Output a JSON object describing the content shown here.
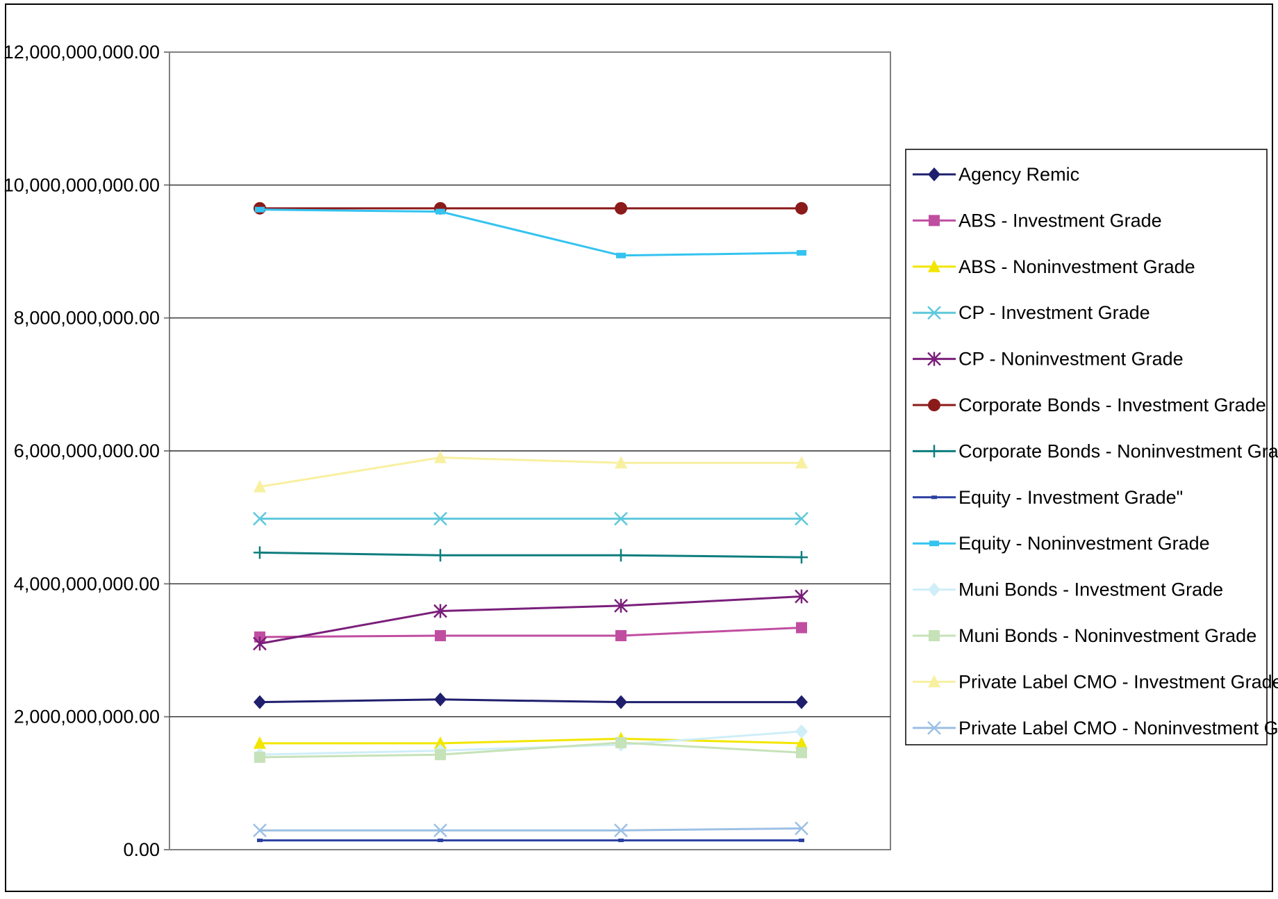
{
  "chart_data": {
    "type": "line",
    "title": "",
    "xlabel": "",
    "ylabel": "",
    "ylim": [
      0,
      12000000000
    ],
    "yticks": [
      "0.00",
      "2,000,000,000.00",
      "4,000,000,000.00",
      "6,000,000,000.00",
      "8,000,000,000.00",
      "10,000,000,000.00",
      "12,000,000,000.00"
    ],
    "ytick_values": [
      0,
      2000000000,
      4000000000,
      6000000000,
      8000000000,
      10000000000,
      12000000000
    ],
    "x": [
      1,
      2,
      3,
      4
    ],
    "grid": "horizontal",
    "legend_position": "right",
    "series": [
      {
        "name": "Agency Remic",
        "color": "#1f1f6e",
        "marker": "diamond",
        "values": [
          2220000000,
          2260000000,
          2220000000,
          2220000000
        ]
      },
      {
        "name": "ABS - Investment Grade",
        "color": "#c04ea0",
        "marker": "square",
        "values": [
          3200000000,
          3220000000,
          3220000000,
          3340000000
        ]
      },
      {
        "name": "ABS - Noninvestment Grade",
        "color": "#f2e600",
        "marker": "triangle",
        "values": [
          1600000000,
          1600000000,
          1670000000,
          1600000000
        ]
      },
      {
        "name": "CP - Investment Grade",
        "color": "#5fc8dc",
        "marker": "x",
        "values": [
          4980000000,
          4980000000,
          4980000000,
          4980000000
        ]
      },
      {
        "name": "CP - Noninvestment Grade",
        "color": "#7a1f7a",
        "marker": "star",
        "values": [
          3100000000,
          3590000000,
          3670000000,
          3810000000
        ]
      },
      {
        "name": "Corporate Bonds - Investment Grade",
        "color": "#8b1a1a",
        "marker": "circle",
        "values": [
          9650000000,
          9650000000,
          9650000000,
          9650000000
        ]
      },
      {
        "name": "Corporate Bonds - Noninvestment Grade",
        "color": "#0e7d7d",
        "marker": "plus",
        "values": [
          4470000000,
          4430000000,
          4430000000,
          4400000000
        ]
      },
      {
        "name": "Equity - Investment Grade\"",
        "color": "#2a3fa0",
        "marker": "dash",
        "values": [
          140000000,
          140000000,
          140000000,
          140000000
        ]
      },
      {
        "name": "Equity - Noninvestment Grade",
        "color": "#33c3f0",
        "marker": "bar",
        "values": [
          9630000000,
          9600000000,
          8940000000,
          8980000000
        ]
      },
      {
        "name": "Muni Bonds - Investment Grade",
        "color": "#cfeef8",
        "marker": "diamond",
        "values": [
          1430000000,
          1490000000,
          1580000000,
          1780000000
        ]
      },
      {
        "name": "Muni Bonds - Noninvestment Grade",
        "color": "#c6e2b8",
        "marker": "square",
        "values": [
          1390000000,
          1430000000,
          1610000000,
          1460000000
        ]
      },
      {
        "name": "Private Label CMO - Investment Grade",
        "color": "#f8f0a0",
        "marker": "triangle",
        "values": [
          5460000000,
          5900000000,
          5820000000,
          5820000000
        ]
      },
      {
        "name": "Private Label CMO - Noninvestment Grade",
        "color": "#9cc0e4",
        "marker": "x",
        "values": [
          290000000,
          290000000,
          290000000,
          320000000
        ]
      }
    ]
  }
}
